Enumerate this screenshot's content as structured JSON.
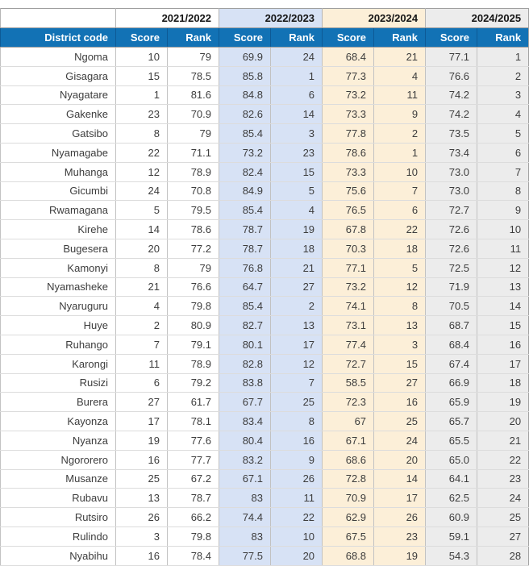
{
  "colors": {
    "header_bg": "#1272b5",
    "header_divider": "#0d5a96",
    "group_blue": "#d7e2f5",
    "group_cream": "#fcefd8",
    "group_gray": "#ececec",
    "border_outer": "#9f9f9f",
    "border_vertical": "#c2c2c2",
    "border_horizontal": "#dcdcdc",
    "text_data": "#3d3d3d"
  },
  "table": {
    "corner_label": "",
    "years": [
      "2021/2022",
      "2022/2023",
      "2023/2024",
      "2024/2025"
    ],
    "columns": {
      "district": "District code",
      "score": "Score",
      "rank": "Rank"
    }
  },
  "chart_data": {
    "type": "table",
    "year_groups": [
      "2021/2022",
      "2022/2023",
      "2023/2024",
      "2024/2025"
    ],
    "columns": [
      "District code",
      "2021/2022 Score",
      "2021/2022 Rank",
      "2022/2023 Score",
      "2022/2023 Rank",
      "2023/2024 Score",
      "2023/2024 Rank",
      "2024/2025 Score",
      "2024/2025 Rank"
    ],
    "rows": [
      [
        "Ngoma",
        "10",
        "79",
        "69.9",
        "24",
        "68.4",
        "21",
        "77.1",
        "1"
      ],
      [
        "Gisagara",
        "15",
        "78.5",
        "85.8",
        "1",
        "77.3",
        "4",
        "76.6",
        "2"
      ],
      [
        "Nyagatare",
        "1",
        "81.6",
        "84.8",
        "6",
        "73.2",
        "11",
        "74.2",
        "3"
      ],
      [
        "Gakenke",
        "23",
        "70.9",
        "82.6",
        "14",
        "73.3",
        "9",
        "74.2",
        "4"
      ],
      [
        "Gatsibo",
        "8",
        "79",
        "85.4",
        "3",
        "77.8",
        "2",
        "73.5",
        "5"
      ],
      [
        "Nyamagabe",
        "22",
        "71.1",
        "73.2",
        "23",
        "78.6",
        "1",
        "73.4",
        "6"
      ],
      [
        "Muhanga",
        "12",
        "78.9",
        "82.4",
        "15",
        "73.3",
        "10",
        "73.0",
        "7"
      ],
      [
        "Gicumbi",
        "24",
        "70.8",
        "84.9",
        "5",
        "75.6",
        "7",
        "73.0",
        "8"
      ],
      [
        "Rwamagana",
        "5",
        "79.5",
        "85.4",
        "4",
        "76.5",
        "6",
        "72.7",
        "9"
      ],
      [
        "Kirehe",
        "14",
        "78.6",
        "78.7",
        "19",
        "67.8",
        "22",
        "72.6",
        "10"
      ],
      [
        "Bugesera",
        "20",
        "77.2",
        "78.7",
        "18",
        "70.3",
        "18",
        "72.6",
        "11"
      ],
      [
        "Kamonyi",
        "8",
        "79",
        "76.8",
        "21",
        "77.1",
        "5",
        "72.5",
        "12"
      ],
      [
        "Nyamasheke",
        "21",
        "76.6",
        "64.7",
        "27",
        "73.2",
        "12",
        "71.9",
        "13"
      ],
      [
        "Nyaruguru",
        "4",
        "79.8",
        "85.4",
        "2",
        "74.1",
        "8",
        "70.5",
        "14"
      ],
      [
        "Huye",
        "2",
        "80.9",
        "82.7",
        "13",
        "73.1",
        "13",
        "68.7",
        "15"
      ],
      [
        "Ruhango",
        "7",
        "79.1",
        "80.1",
        "17",
        "77.4",
        "3",
        "68.4",
        "16"
      ],
      [
        "Karongi",
        "11",
        "78.9",
        "82.8",
        "12",
        "72.7",
        "15",
        "67.4",
        "17"
      ],
      [
        "Rusizi",
        "6",
        "79.2",
        "83.8",
        "7",
        "58.5",
        "27",
        "66.9",
        "18"
      ],
      [
        "Burera",
        "27",
        "61.7",
        "67.7",
        "25",
        "72.3",
        "16",
        "65.9",
        "19"
      ],
      [
        "Kayonza",
        "17",
        "78.1",
        "83.4",
        "8",
        "67",
        "25",
        "65.7",
        "20"
      ],
      [
        "Nyanza",
        "19",
        "77.6",
        "80.4",
        "16",
        "67.1",
        "24",
        "65.5",
        "21"
      ],
      [
        "Ngororero",
        "16",
        "77.7",
        "83.2",
        "9",
        "68.6",
        "20",
        "65.0",
        "22"
      ],
      [
        "Musanze",
        "25",
        "67.2",
        "67.1",
        "26",
        "72.8",
        "14",
        "64.1",
        "23"
      ],
      [
        "Rubavu",
        "13",
        "78.7",
        "83",
        "11",
        "70.9",
        "17",
        "62.5",
        "24"
      ],
      [
        "Rutsiro",
        "26",
        "66.2",
        "74.4",
        "22",
        "62.9",
        "26",
        "60.9",
        "25"
      ],
      [
        "Rulindo",
        "3",
        "79.8",
        "83",
        "10",
        "67.5",
        "23",
        "59.1",
        "27"
      ],
      [
        "Nyabihu",
        "16",
        "78.4",
        "77.5",
        "20",
        "68.8",
        "19",
        "54.3",
        "28"
      ]
    ]
  }
}
